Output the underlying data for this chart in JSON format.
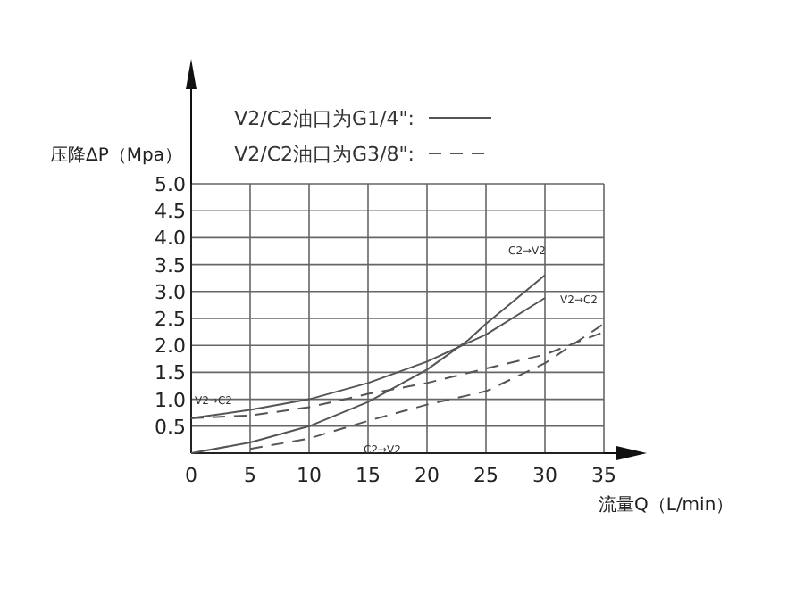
{
  "chart_data": {
    "type": "line",
    "xlabel": "流量Q（L/min）",
    "ylabel": "压降ΔP（Mpa）",
    "x": [
      0,
      5,
      10,
      15,
      20,
      23.5,
      25,
      30
    ],
    "series": [
      {
        "name": "V2/C2油口为G1/4\":",
        "color": "#555555",
        "line_style": "solid",
        "values": [
          0.65,
          0.8,
          1.0,
          1.3,
          1.7,
          2.05,
          2.2,
          2.88
        ]
      },
      {
        "color": "#555555",
        "line_style": "solid",
        "values": [
          0.0,
          0.2,
          0.5,
          0.95,
          1.55,
          2.1,
          2.4,
          3.3
        ]
      },
      {
        "name": "V2/C2油口为G3/8\":",
        "color": "#555555",
        "line_style": "dashed",
        "x": [
          0,
          5,
          10,
          15,
          20,
          25,
          30,
          35
        ],
        "values": [
          0.65,
          0.7,
          0.85,
          1.1,
          1.3,
          1.57,
          1.83,
          2.25
        ]
      },
      {
        "color": "#555555",
        "line_style": "dashed",
        "x": [
          5,
          10,
          15,
          20,
          25,
          30,
          35
        ],
        "values": [
          0.08,
          0.27,
          0.6,
          0.9,
          1.15,
          1.67,
          2.4
        ]
      }
    ],
    "annotations": [
      {
        "text": "V2→C2",
        "x": 0,
        "y": 0.65
      },
      {
        "text": "C2→V2",
        "x": 15,
        "y": 0.6
      },
      {
        "text": "C2→V2",
        "x": 30,
        "y": 3.3
      },
      {
        "text": "V2→C2",
        "x": 35,
        "y": 2.25
      }
    ],
    "xlim": [
      0,
      35
    ],
    "ylim": [
      0,
      5
    ],
    "xticks": [
      0,
      5,
      10,
      15,
      20,
      25,
      30,
      35
    ],
    "yticks": [
      {
        "value": 0.5,
        "label": "0.5"
      },
      {
        "value": 1,
        "label": "1.0"
      },
      {
        "value": 1.5,
        "label": "1.5"
      },
      {
        "value": 2,
        "label": "2.0"
      },
      {
        "value": 2.5,
        "label": "2.5"
      },
      {
        "value": 3,
        "label": "3.0"
      },
      {
        "value": 3.5,
        "label": "3.5"
      },
      {
        "value": 4,
        "label": "4.0"
      },
      {
        "value": 4.5,
        "label": "4.5"
      },
      {
        "value": 5,
        "label": "5.0"
      }
    ],
    "grid": true,
    "legend": "top",
    "marker": "none"
  }
}
